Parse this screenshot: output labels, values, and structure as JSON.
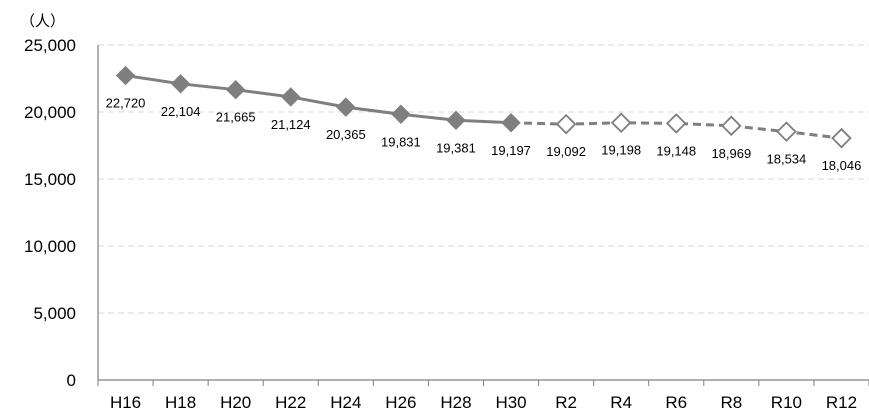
{
  "chart_data": {
    "type": "line",
    "unit_label": "（人）",
    "categories": [
      "H16",
      "H18",
      "H20",
      "H22",
      "H24",
      "H26",
      "H28",
      "H30",
      "R2",
      "R4",
      "R6",
      "R8",
      "R10",
      "R12"
    ],
    "series": [
      {
        "values": [
          22720,
          22104,
          21665,
          21124,
          20365,
          19831,
          19381,
          19197,
          19092,
          19198,
          19148,
          18969,
          18534,
          18046
        ],
        "value_labels": [
          "22,720",
          "22,104",
          "21,665",
          "21,124",
          "20,365",
          "19,831",
          "19,381",
          "19,197",
          "19,092",
          "19,198",
          "19,148",
          "18,969",
          "18,534",
          "18,046"
        ],
        "actual_count": 8,
        "actual_style": "solid line, filled diamond markers",
        "projected_style": "dashed line, hollow diamond markers"
      }
    ],
    "ylim": [
      0,
      25000
    ],
    "yticks": [
      0,
      5000,
      10000,
      15000,
      20000,
      25000
    ],
    "ytick_labels": [
      "0",
      "5,000",
      "10,000",
      "15,000",
      "20,000",
      "25,000"
    ],
    "grid": true,
    "colors": {
      "line": "#7f7f7f",
      "marker_fill": "#7f7f7f",
      "marker_hollow_fill": "#ffffff",
      "grid": "#d9d9d9",
      "axis": "#808080"
    }
  }
}
